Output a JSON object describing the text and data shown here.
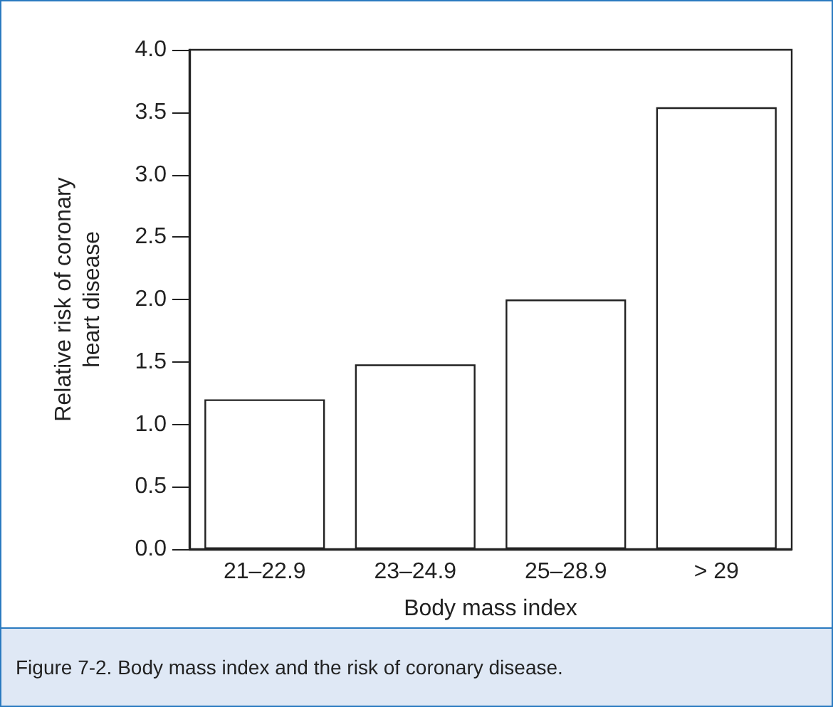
{
  "chart_data": {
    "type": "bar",
    "xlabel": "Body mass index",
    "ylabel": "Relative risk of coronary\nheart disease",
    "categories": [
      "21–22.9",
      "23–24.9",
      "25–28.9",
      "> 29"
    ],
    "values": [
      1.2,
      1.48,
      2.0,
      3.54
    ],
    "color": "#ffffff",
    "ylim": [
      0,
      4
    ],
    "yticks": [
      {
        "value": 0,
        "label": "0.0"
      },
      {
        "value": 0.5,
        "label": "0.5"
      },
      {
        "value": 1,
        "label": "1.0"
      },
      {
        "value": 1.5,
        "label": "1.5"
      },
      {
        "value": 2,
        "label": "2.0"
      },
      {
        "value": 2.5,
        "label": "2.5"
      },
      {
        "value": 3,
        "label": "3.0"
      },
      {
        "value": 3.5,
        "label": "3.5"
      },
      {
        "value": 4,
        "label": "4.0"
      }
    ],
    "annotations": [
      "Figure 7-2.  Body mass index and the risk of coronary disease."
    ]
  }
}
